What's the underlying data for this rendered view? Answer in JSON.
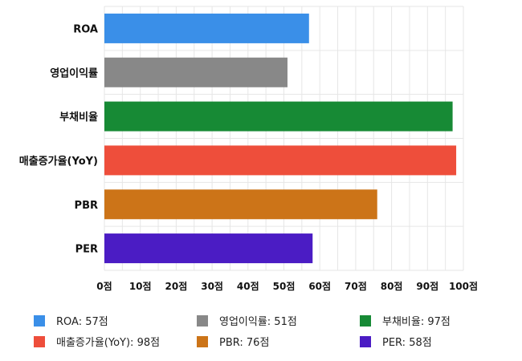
{
  "chart_data": {
    "type": "bar",
    "orientation": "horizontal",
    "categories": [
      "ROA",
      "영업이익률",
      "부채비율",
      "매출증가율(YoY)",
      "PBR",
      "PER"
    ],
    "values": [
      57,
      51,
      97,
      98,
      76,
      58
    ],
    "colors": [
      "#3a8fe8",
      "#888888",
      "#178a35",
      "#ee4e3b",
      "#cc7418",
      "#4b1cc4"
    ],
    "x_ticks": [
      "0점",
      "10점",
      "20점",
      "30점",
      "40점",
      "50점",
      "60점",
      "70점",
      "80점",
      "90점",
      "100점"
    ],
    "xlim": [
      0,
      100
    ],
    "grid": true,
    "legend": {
      "placement": "bottom",
      "items": [
        {
          "label": "ROA: 57점",
          "color": "#3a8fe8"
        },
        {
          "label": "영업이익률: 51점",
          "color": "#888888"
        },
        {
          "label": "부채비율: 97점",
          "color": "#178a35"
        },
        {
          "label": "매출증가율(YoY): 98점",
          "color": "#ee4e3b"
        },
        {
          "label": "PBR: 76점",
          "color": "#cc7418"
        },
        {
          "label": "PER: 58점",
          "color": "#4b1cc4"
        }
      ]
    }
  }
}
